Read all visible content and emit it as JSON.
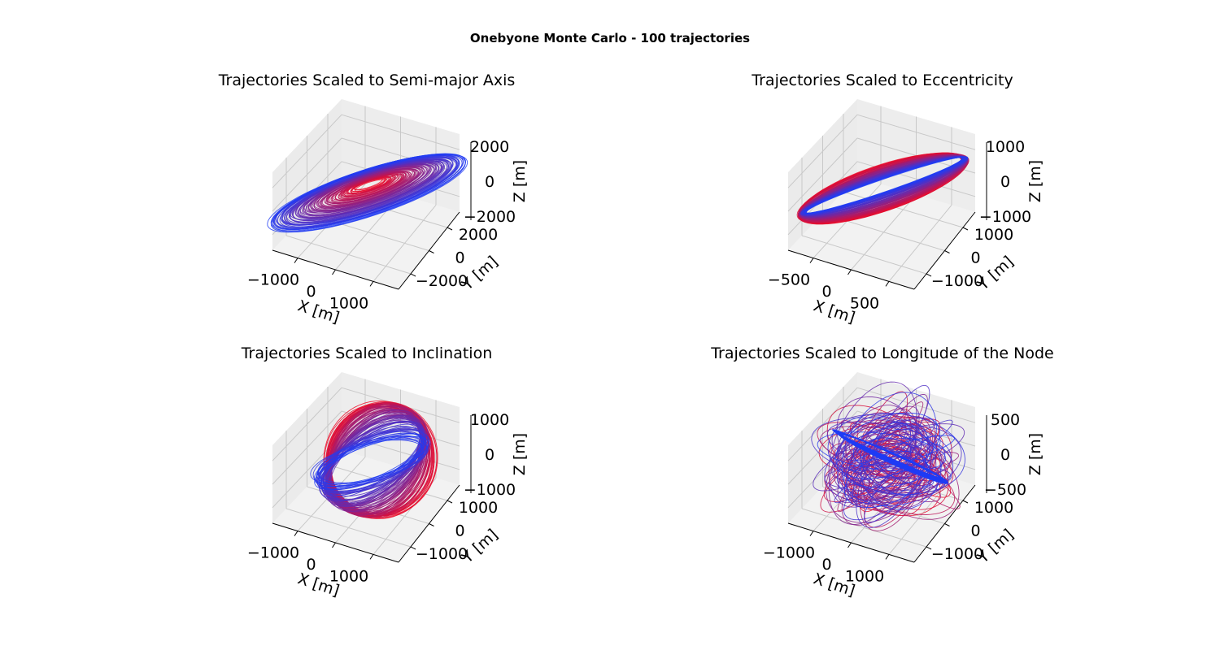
{
  "figure": {
    "title": "Onebyone Monte Carlo - 100 trajectories"
  },
  "colors": {
    "start": "#ee0a26",
    "end": "#1f3cf5",
    "pane": "#f2f2f2",
    "grid": "#c8c8c8"
  },
  "chart_data": [
    {
      "type": "3d-line",
      "title": "Trajectories Scaled to Semi-major Axis",
      "xlabel": "X [m]",
      "ylabel": "Y [m]",
      "zlabel": "Z [m]",
      "xticks": [
        "−1000",
        "0",
        "1000"
      ],
      "yticks": [
        "−2000",
        "0",
        "2000"
      ],
      "zticks": [
        "−2000",
        "0",
        "2000"
      ],
      "n_trajectories": 100,
      "color_scale": "red-to-blue"
    },
    {
      "type": "3d-line",
      "title": "Trajectories Scaled to Eccentricity",
      "xlabel": "X [m]",
      "ylabel": "Y [m]",
      "zlabel": "Z [m]",
      "xticks": [
        "−500",
        "0",
        "500"
      ],
      "yticks": [
        "−1000",
        "0",
        "1000"
      ],
      "zticks": [
        "−1000",
        "0",
        "1000"
      ],
      "n_trajectories": 100,
      "color_scale": "red-to-blue"
    },
    {
      "type": "3d-line",
      "title": "Trajectories Scaled to Inclination",
      "xlabel": "X [m]",
      "ylabel": "Y [m]",
      "zlabel": "Z [m]",
      "xticks": [
        "−1000",
        "0",
        "1000"
      ],
      "yticks": [
        "−1000",
        "0",
        "1000"
      ],
      "zticks": [
        "−1000",
        "0",
        "1000"
      ],
      "n_trajectories": 100,
      "color_scale": "red-to-blue"
    },
    {
      "type": "3d-line",
      "title": "Trajectories Scaled to Longitude of the Node",
      "xlabel": "X [m]",
      "ylabel": "Y [m]",
      "zlabel": "Z [m]",
      "xticks": [
        "−1000",
        "0",
        "1000"
      ],
      "yticks": [
        "−1000",
        "0",
        "1000"
      ],
      "zticks": [
        "−500",
        "0",
        "500"
      ],
      "n_trajectories": 100,
      "color_scale": "red-to-blue"
    }
  ]
}
